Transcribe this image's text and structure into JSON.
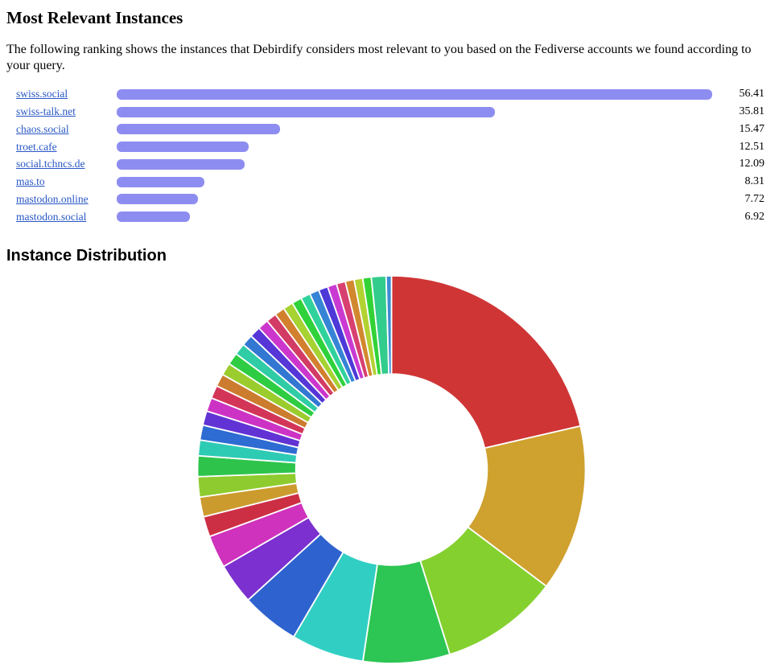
{
  "page": {
    "heading_relevance": "Most Relevant Instances",
    "description": "The following ranking shows the instances that Debirdify considers most relevant to you based on the Fediverse accounts we found according to your query.",
    "heading_distribution": "Instance Distribution"
  },
  "chart_data": [
    {
      "type": "bar",
      "orientation": "horizontal",
      "title": "Most Relevant Instances",
      "categories": [
        "swiss.social",
        "swiss-talk.net",
        "chaos.social",
        "troet.cafe",
        "social.tchncs.de",
        "mas.to",
        "mastodon.online",
        "mastodon.social"
      ],
      "values": [
        56.41,
        35.81,
        15.47,
        12.51,
        12.09,
        8.31,
        7.72,
        6.92
      ],
      "value_labels": [
        "56.41",
        "35.81",
        "15.47",
        "12.51",
        "12.09",
        "8.31",
        "7.72",
        "6.92"
      ],
      "xlim": [
        0,
        56.41
      ],
      "bar_color": "#8d8df1",
      "link_color": "#2857c5",
      "grid": false,
      "legend": "none"
    },
    {
      "type": "pie",
      "style": "donut",
      "title": "Instance Distribution",
      "start_angle_deg": 0,
      "direction": "clockwise",
      "inner_radius_ratio": 0.493,
      "separator_color": "#ffffff",
      "segments": [
        {
          "angle_deg": 77.0,
          "color": "#cf3535"
        },
        {
          "angle_deg": 50.0,
          "color": "#cfa12e"
        },
        {
          "angle_deg": 35.5,
          "color": "#84d02f"
        },
        {
          "angle_deg": 26.0,
          "color": "#2dc553"
        },
        {
          "angle_deg": 21.8,
          "color": "#31cfc3"
        },
        {
          "angle_deg": 17.4,
          "color": "#2e63cf"
        },
        {
          "angle_deg": 12.3,
          "color": "#7b30cf"
        },
        {
          "angle_deg": 9.8,
          "color": "#cf32bc"
        },
        {
          "angle_deg": 6.1,
          "color": "#cc2e44"
        },
        {
          "angle_deg": 5.9,
          "color": "#cc9b2e"
        },
        {
          "angle_deg": 6.1,
          "color": "#8ecb2e"
        },
        {
          "angle_deg": 6.2,
          "color": "#2ec44c"
        },
        {
          "angle_deg": 4.7,
          "color": "#2ecbb4"
        },
        {
          "angle_deg": 4.5,
          "color": "#2e6bd2"
        },
        {
          "angle_deg": 4.3,
          "color": "#6133d4"
        },
        {
          "angle_deg": 4.1,
          "color": "#cc33c4"
        },
        {
          "angle_deg": 3.9,
          "color": "#d23558"
        },
        {
          "angle_deg": 3.8,
          "color": "#cc7c2e"
        },
        {
          "angle_deg": 3.7,
          "color": "#9bcc2e"
        },
        {
          "angle_deg": 3.6,
          "color": "#2ecc42"
        },
        {
          "angle_deg": 3.5,
          "color": "#2fcca6"
        },
        {
          "angle_deg": 3.4,
          "color": "#3277d2"
        },
        {
          "angle_deg": 3.3,
          "color": "#5636d6"
        },
        {
          "angle_deg": 3.2,
          "color": "#cc36cc"
        },
        {
          "angle_deg": 3.1,
          "color": "#d23b64"
        },
        {
          "angle_deg": 3.05,
          "color": "#d2802e"
        },
        {
          "angle_deg": 3.0,
          "color": "#a6d232"
        },
        {
          "angle_deg": 2.95,
          "color": "#2fd23b"
        },
        {
          "angle_deg": 2.9,
          "color": "#30d29b"
        },
        {
          "angle_deg": 2.85,
          "color": "#3684d6"
        },
        {
          "angle_deg": 2.8,
          "color": "#4d38d8"
        },
        {
          "angle_deg": 2.75,
          "color": "#c93ad2"
        },
        {
          "angle_deg": 2.7,
          "color": "#d84070"
        },
        {
          "angle_deg": 2.65,
          "color": "#d2882e"
        },
        {
          "angle_deg": 2.6,
          "color": "#b2d232"
        },
        {
          "angle_deg": 2.55,
          "color": "#32d236"
        },
        {
          "angle_deg": 4.4,
          "color": "#32cc8c"
        },
        {
          "angle_deg": 1.6,
          "color": "#3b8cd2"
        }
      ]
    }
  ]
}
